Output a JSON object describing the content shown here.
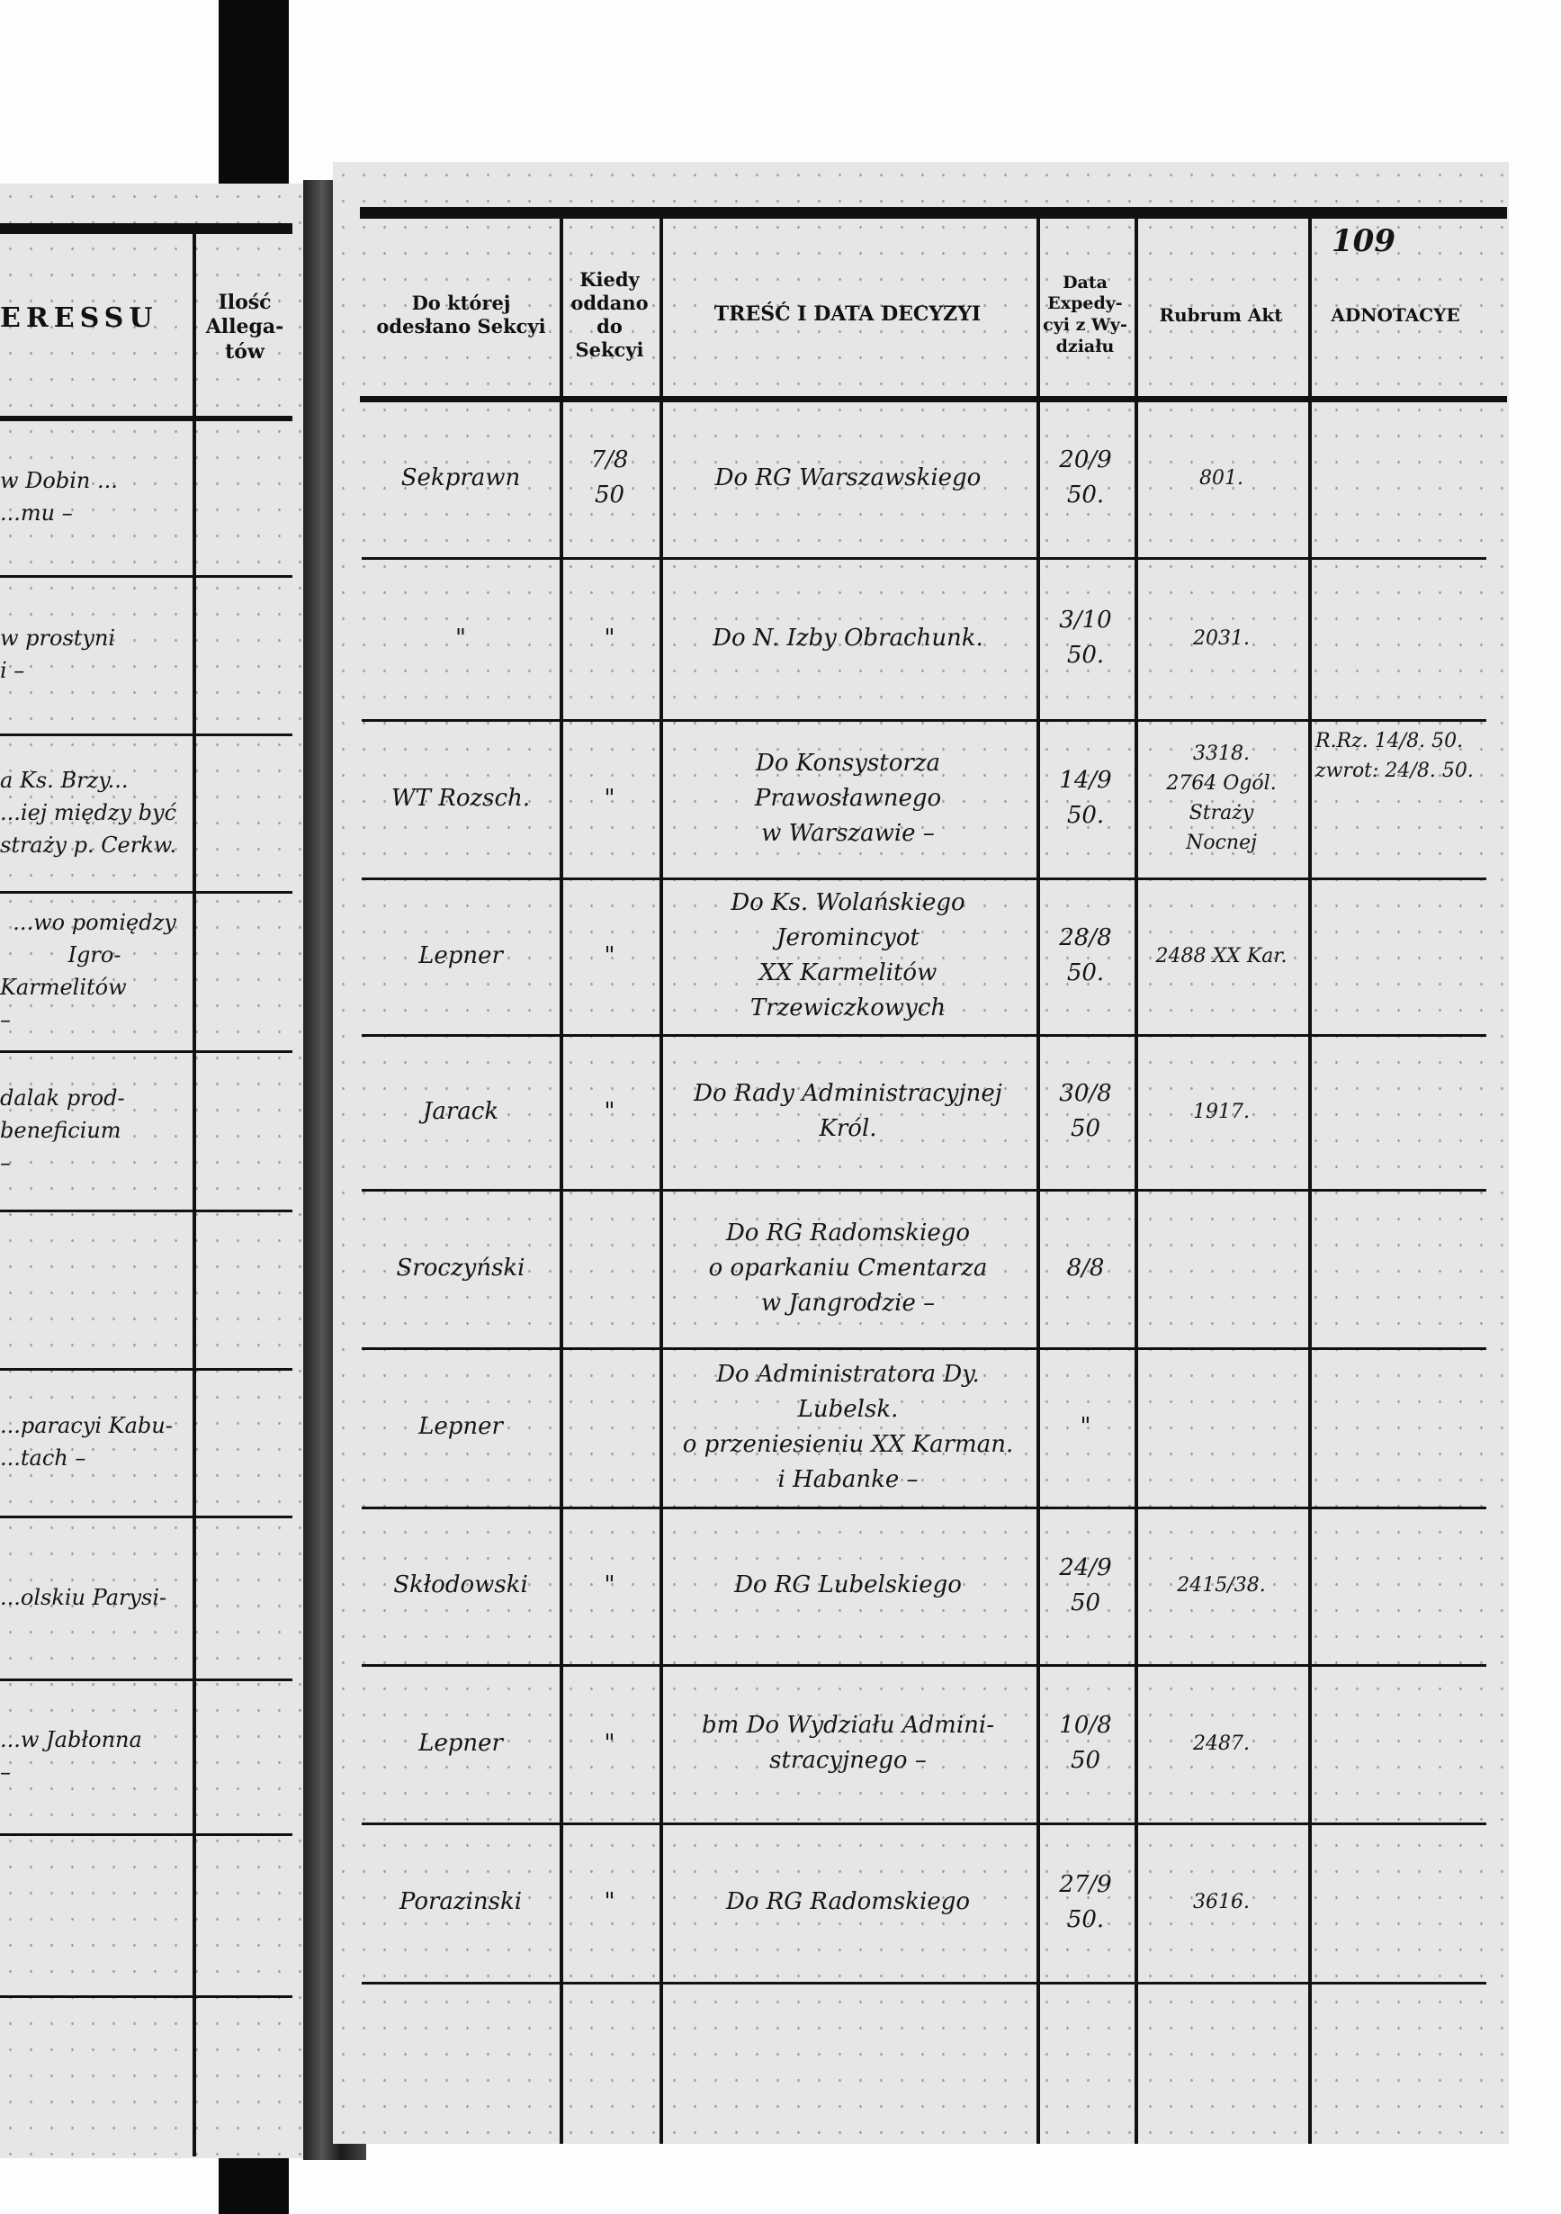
{
  "left_page": {
    "header_fragment": "ERESSU",
    "allegat_header": "Ilość Allega- tów",
    "fragments": [
      {
        "row": 0,
        "lines": [
          "w Dobin ...",
          "...mu –"
        ]
      },
      {
        "row": 1,
        "lines": [
          "w prostyni",
          "i –"
        ]
      },
      {
        "row": 2,
        "lines": [
          "a Ks. Brzy...",
          "...iej między być",
          "straży p. Cerkw."
        ]
      },
      {
        "row": 3,
        "lines": [
          "...wo pomiędzy Igro-",
          "Karmelitów",
          "–"
        ]
      },
      {
        "row": 4,
        "lines": [
          "dalak prod-",
          "beneficium",
          "–"
        ]
      },
      {
        "row": 6,
        "lines": [
          "...paracyi Kabu-",
          "...tach –"
        ]
      },
      {
        "row": 7,
        "lines": [
          "...olskiu Parysi-"
        ]
      },
      {
        "row": 8,
        "lines": [
          "...w Jabłonna",
          "–"
        ]
      }
    ]
  },
  "right_page": {
    "page_number": "109",
    "headers": {
      "section": "Do której odesłano Sekcyi",
      "date_given": "Kiedy oddano do Sekcyi",
      "content": "TREŚĆ I DATA DECYZYI",
      "expedition": "Data Expedy- cyi z Wy- działu",
      "rubrum": "Rubrum Akt",
      "notes": "ADNOTACYE"
    },
    "rows": [
      {
        "section": "Sekprawn",
        "date_given": [
          "7/8",
          "50"
        ],
        "content": [
          "Do RG Warszawskiego"
        ],
        "expedition": [
          "20/9",
          "50."
        ],
        "rubrum": [
          "801."
        ],
        "notes": []
      },
      {
        "section": "\"",
        "date_given": [
          "\""
        ],
        "content": [
          "Do N. Izby Obrachunk."
        ],
        "expedition": [
          "3/10",
          "50."
        ],
        "rubrum": [
          "2031."
        ],
        "notes": []
      },
      {
        "section": "WT Rozsch.",
        "date_given": [
          "\""
        ],
        "content": [
          "Do Konsystorza Prawosławnego",
          "w Warszawie –"
        ],
        "expedition": [
          "14/9",
          "50."
        ],
        "rubrum": [
          "3318.",
          "2764 Ogól.",
          "Straży",
          "Nocnej"
        ],
        "notes": [
          "R.Rz. 14/8. 50.",
          "zwrot: 24/8. 50."
        ]
      },
      {
        "section": "Lepner",
        "date_given": [
          "\""
        ],
        "content": [
          "Do Ks. Wolańskiego Jeromincyot",
          "XX Karmelitów Trzewiczkowych"
        ],
        "expedition": [
          "28/8",
          "50."
        ],
        "rubrum": [
          "2488 XX Kar."
        ],
        "notes": []
      },
      {
        "section": "Jarack",
        "date_given": [
          "\""
        ],
        "content": [
          "Do Rady Administracyjnej",
          "Król."
        ],
        "expedition": [
          "30/8",
          "50"
        ],
        "rubrum": [
          "1917."
        ],
        "notes": []
      },
      {
        "section": "Sroczyński",
        "date_given": [],
        "content": [
          "Do RG Radomskiego",
          "o oparkaniu Cmentarza",
          "w Jangrodzie –"
        ],
        "expedition": [
          "8/8"
        ],
        "rubrum": [],
        "notes": []
      },
      {
        "section": "Lepner",
        "date_given": [],
        "content": [
          "Do Administratora Dy. Lubelsk.",
          "o przeniesieniu XX Karman.",
          "i Habanke –"
        ],
        "expedition": [
          "\""
        ],
        "rubrum": [],
        "notes": []
      },
      {
        "section": "Skłodowski",
        "date_given": [
          "\""
        ],
        "content": [
          "Do RG Lubelskiego"
        ],
        "expedition": [
          "24/9",
          "50"
        ],
        "rubrum": [
          "2415/38."
        ],
        "notes": []
      },
      {
        "section": "Lepner",
        "date_given": [
          "\""
        ],
        "content": [
          "bm Do Wydziału Admini-",
          "stracyjnego –"
        ],
        "expedition": [
          "10/8",
          "50"
        ],
        "rubrum": [
          "2487."
        ],
        "notes": []
      },
      {
        "section": "Porazinski",
        "date_given": [
          "\""
        ],
        "content": [
          "Do RG Radomskiego"
        ],
        "expedition": [
          "27/9",
          "50."
        ],
        "rubrum": [
          "3616."
        ],
        "notes": []
      },
      {
        "section": "",
        "date_given": [],
        "content": [],
        "expedition": [],
        "rubrum": [],
        "notes": []
      }
    ]
  }
}
